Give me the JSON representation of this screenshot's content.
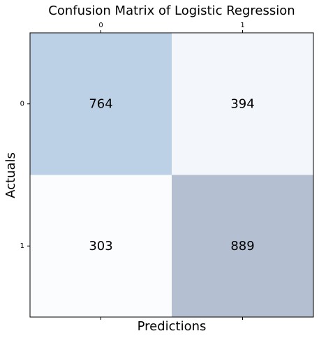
{
  "chart_data": {
    "type": "heatmap",
    "title": "Confusion Matrix of Logistic Regression",
    "xlabel": "Predictions",
    "ylabel": "Actuals",
    "x_categories": [
      "0",
      "1"
    ],
    "y_categories": [
      "0",
      "1"
    ],
    "values": [
      [
        764,
        394
      ],
      [
        303,
        889
      ]
    ],
    "x_tick_position": "top",
    "grid": false,
    "colors": {
      "cell_0_0": "#bcd1e5",
      "cell_0_1": "#f3f6fb",
      "cell_1_0": "#fbfcfe",
      "cell_1_1": "#b4c0d2"
    }
  }
}
